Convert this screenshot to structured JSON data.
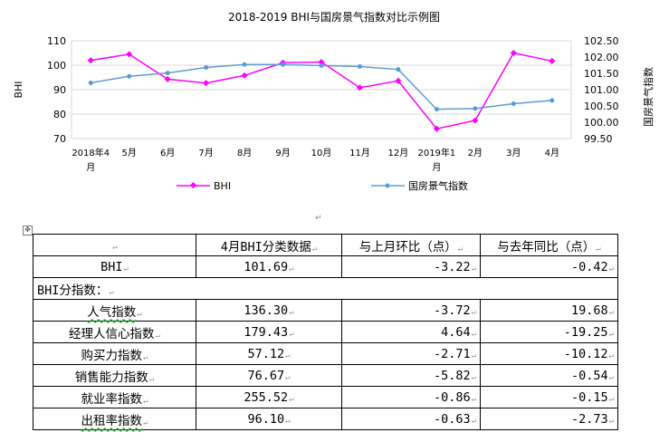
{
  "chart_data": {
    "type": "line",
    "title": "2018-2019 BHI与国房景气指数对比示例图",
    "categories": [
      "2018年4月",
      "5月",
      "6月",
      "7月",
      "8月",
      "9月",
      "10月",
      "11月",
      "12月",
      "2019年1月",
      "2月",
      "3月",
      "4月"
    ],
    "ylabel": "BHI",
    "y2label": "国房景气指数",
    "ylim": [
      70,
      110
    ],
    "y_ticks": [
      "70",
      "80",
      "90",
      "100",
      "110"
    ],
    "y2lim": [
      99.5,
      102.5
    ],
    "y2_ticks": [
      "99.50",
      "100.00",
      "100.50",
      "101.00",
      "101.50",
      "102.00",
      "102.50"
    ],
    "series": [
      {
        "name": "BHI",
        "axis": "left",
        "color": "#ff00ff",
        "values": [
          102,
          104.5,
          94.3,
          92.7,
          95.8,
          101,
          101.3,
          90.8,
          93.6,
          74,
          77.4,
          105,
          101.69
        ]
      },
      {
        "name": "国房景气指数",
        "axis": "right",
        "color": "#5b9bd5",
        "values": [
          101.21,
          101.41,
          101.51,
          101.68,
          101.77,
          101.77,
          101.74,
          101.71,
          101.62,
          100.4,
          100.42,
          100.57,
          100.67
        ]
      }
    ],
    "legend": "bottom"
  },
  "table": {
    "headers": [
      "4月BHI分类数据",
      "与上月环比（点）",
      "与去年同比（点）"
    ],
    "bhi_row": {
      "label": "BHI",
      "value": "101.69",
      "mom": "-3.22",
      "yoy": "-0.42"
    },
    "section_label": "BHI分指数：",
    "sub_rows": [
      {
        "label": "人气指数",
        "value": "136.30",
        "mom": "-3.72",
        "yoy": "19.68"
      },
      {
        "label": "经理人信心指数",
        "value": "179.43",
        "mom": "4.64",
        "yoy": "-19.25"
      },
      {
        "label": "购买力指数",
        "value": "57.12",
        "mom": "-2.71",
        "yoy": "-10.12"
      },
      {
        "label": "销售能力指数",
        "value": "76.67",
        "mom": "-5.82",
        "yoy": "-0.54"
      },
      {
        "label": "就业率指数",
        "value": "255.52",
        "mom": "-0.86",
        "yoy": "-0.15"
      },
      {
        "label": "出租率指数",
        "value": "96.10",
        "mom": "-0.63",
        "yoy": "-2.73"
      }
    ]
  }
}
